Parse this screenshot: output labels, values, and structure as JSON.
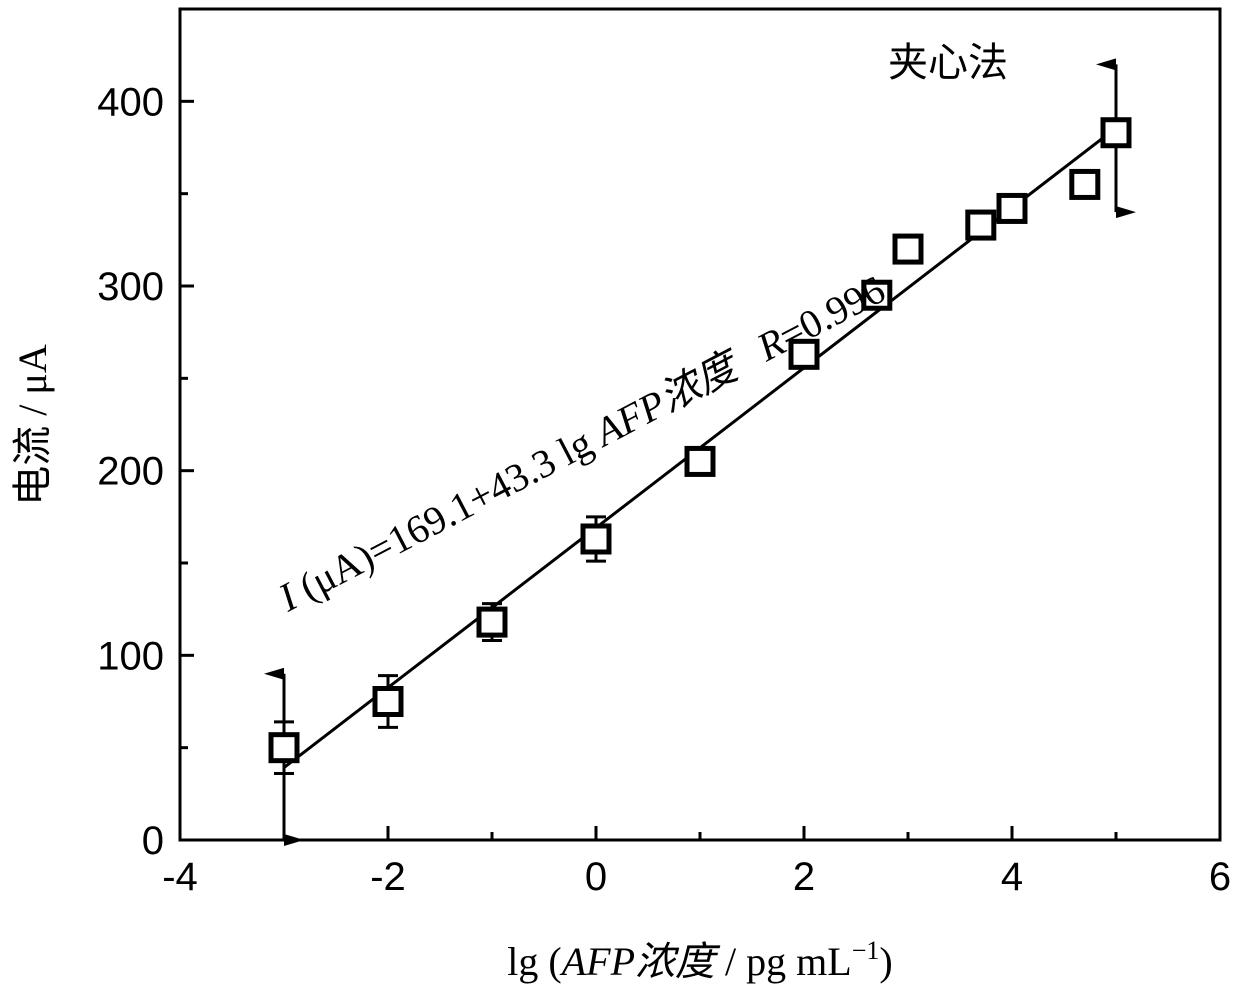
{
  "chart_data": {
    "type": "scatter",
    "title": "",
    "xlabel_prefix": "lg (",
    "xlabel_name": "AFP浓度",
    "xlabel_units": " / pg mL",
    "xlabel_sup": "−1",
    "xlabel_suffix": ")",
    "ylabel": "电流 / μA",
    "xlim": [
      -4,
      6
    ],
    "ylim": [
      0,
      450
    ],
    "xticks": [
      -4,
      -2,
      0,
      2,
      4,
      6
    ],
    "yticks": [
      0,
      100,
      200,
      300,
      400
    ],
    "x_tick_labels": [
      "-4",
      "-2",
      "0",
      "2",
      "4",
      "6"
    ],
    "y_tick_labels": [
      "0",
      "100",
      "200",
      "300",
      "400"
    ],
    "grid": false,
    "series": [
      {
        "marker": "open-square",
        "points": [
          {
            "x": -3,
            "y": 50,
            "err": 14
          },
          {
            "x": -2,
            "y": 75,
            "err": 14
          },
          {
            "x": -1,
            "y": 118,
            "err": 10
          },
          {
            "x": 0,
            "y": 163,
            "err": 12
          },
          {
            "x": 1,
            "y": 205,
            "err": 6
          },
          {
            "x": 2,
            "y": 263,
            "err": 4
          },
          {
            "x": 2.7,
            "y": 295,
            "err": 3
          },
          {
            "x": 3,
            "y": 320,
            "err": 3
          },
          {
            "x": 3.7,
            "y": 333,
            "err": 3
          },
          {
            "x": 4,
            "y": 342,
            "err": 3
          },
          {
            "x": 4.7,
            "y": 355,
            "err": 3
          },
          {
            "x": 5,
            "y": 383,
            "err": 3
          }
        ]
      }
    ],
    "fit_line": {
      "intercept": 169.1,
      "slope": 43.3,
      "x_range": [
        -3,
        5
      ]
    },
    "bidirectional_arrows": [
      {
        "x": -3,
        "y_from": 0,
        "y_to": 90
      },
      {
        "x": 5,
        "y_from": 340,
        "y_to": 420
      }
    ],
    "annotations": {
      "method_label": "夹心法",
      "equation_italic_I": "I",
      "equation_main": " (μA)=169.1+43.3 lg ",
      "equation_italic_name": "AFP浓度",
      "equation_gap": "   ",
      "equation_italic_R": "R",
      "equation_r_value": "=0.996"
    }
  }
}
